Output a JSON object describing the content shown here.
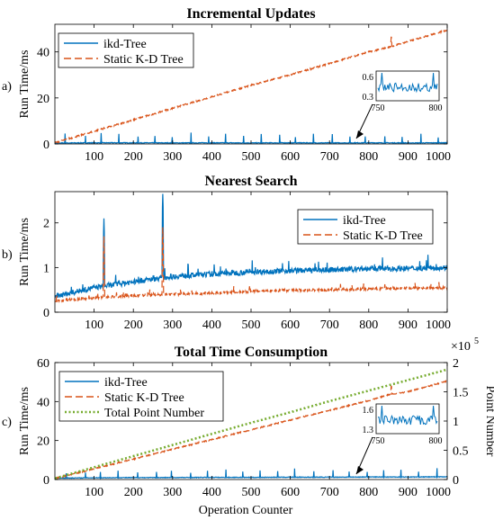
{
  "chart_data": [
    {
      "type": "line",
      "panel_label": "a)",
      "title": "Incremental Updates",
      "xlabel": "",
      "ylabel": "Run Time/ms",
      "xlim": [
        0,
        1000
      ],
      "ylim": [
        0,
        52
      ],
      "xticks": [
        100,
        200,
        300,
        400,
        500,
        600,
        700,
        800,
        900,
        1000
      ],
      "yticks": [
        0,
        20,
        40
      ],
      "grid": false,
      "legend": "top-left",
      "series": [
        {
          "name": "ikd-Tree",
          "color": "#0072BD",
          "style": "solid",
          "x": [
            0,
            100,
            200,
            300,
            400,
            500,
            600,
            700,
            800,
            900,
            1000
          ],
          "y": [
            0.4,
            0.5,
            0.5,
            0.45,
            0.5,
            0.45,
            0.5,
            0.45,
            0.5,
            0.45,
            0.5
          ],
          "spikes_every": 45,
          "spike_height": 4
        },
        {
          "name": "Static K-D Tree",
          "color": "#D95319",
          "style": "dashed",
          "x": [
            0,
            100,
            200,
            300,
            400,
            500,
            600,
            700,
            800,
            850,
            900,
            1000
          ],
          "y": [
            0.5,
            5.5,
            10.5,
            15.5,
            20.5,
            25.5,
            30,
            35,
            40,
            42,
            44.5,
            49.5
          ]
        }
      ],
      "inset": {
        "xlim": [
          750,
          800
        ],
        "yticks": [
          0.3,
          0.6
        ],
        "xticks": [
          750,
          800
        ]
      }
    },
    {
      "type": "line",
      "panel_label": "b)",
      "title": "Nearest Search",
      "xlabel": "",
      "ylabel": "Run Time/ms",
      "xlim": [
        0,
        1000
      ],
      "ylim": [
        0,
        2.7
      ],
      "xticks": [
        100,
        200,
        300,
        400,
        500,
        600,
        700,
        800,
        900,
        1000
      ],
      "yticks": [
        0,
        1,
        2
      ],
      "grid": false,
      "legend": "top-right",
      "series": [
        {
          "name": "ikd-Tree",
          "color": "#0072BD",
          "style": "solid",
          "x": [
            0,
            100,
            200,
            300,
            400,
            500,
            600,
            700,
            800,
            900,
            1000
          ],
          "y": [
            0.35,
            0.55,
            0.68,
            0.8,
            0.85,
            0.9,
            0.93,
            0.95,
            0.97,
            0.98,
            1.0
          ],
          "peaks": [
            {
              "x": 125,
              "y": 2.1
            },
            {
              "x": 275,
              "y": 2.65
            }
          ]
        },
        {
          "name": "Static K-D Tree",
          "color": "#D95319",
          "style": "dashed",
          "x": [
            0,
            100,
            200,
            300,
            400,
            500,
            600,
            700,
            800,
            900,
            1000
          ],
          "y": [
            0.25,
            0.32,
            0.37,
            0.4,
            0.43,
            0.46,
            0.49,
            0.5,
            0.52,
            0.54,
            0.55
          ],
          "peaks": [
            {
              "x": 125,
              "y": 1.7
            },
            {
              "x": 275,
              "y": 1.9
            }
          ]
        }
      ]
    },
    {
      "type": "line",
      "panel_label": "c)",
      "title": "Total Time Consumption",
      "xlabel": "Operation Counter",
      "ylabel": "Run Time/ms",
      "y2label": "Point Number",
      "y2_multiplier": "×10",
      "y2_exponent": "5",
      "xlim": [
        0,
        1000
      ],
      "ylim": [
        0,
        60
      ],
      "y2lim": [
        0,
        2
      ],
      "xticks": [
        100,
        200,
        300,
        400,
        500,
        600,
        700,
        800,
        900,
        1000
      ],
      "yticks": [
        0,
        20,
        40,
        60
      ],
      "y2ticks": [
        0,
        0.5,
        1,
        1.5,
        2
      ],
      "grid": false,
      "legend": "top-left",
      "series": [
        {
          "name": "ikd-Tree",
          "color": "#0072BD",
          "style": "solid",
          "x": [
            0,
            100,
            200,
            300,
            400,
            500,
            600,
            700,
            800,
            900,
            1000
          ],
          "y": [
            0.7,
            0.9,
            1.0,
            1.0,
            1.1,
            1.1,
            1.2,
            1.2,
            1.3,
            1.3,
            1.4
          ],
          "spikes_every": 45,
          "spike_height": 4
        },
        {
          "name": "Static K-D Tree",
          "color": "#D95319",
          "style": "dashed",
          "x": [
            0,
            100,
            200,
            300,
            400,
            500,
            600,
            700,
            800,
            850,
            900,
            1000
          ],
          "y": [
            0.5,
            5.5,
            10.5,
            15.5,
            20.5,
            25.5,
            30.5,
            35.5,
            40.5,
            43.5,
            45,
            50.5
          ]
        },
        {
          "name": "Total Point Number",
          "color": "#77AC30",
          "style": "dotted",
          "axis": "right",
          "x": [
            0,
            100,
            200,
            300,
            400,
            500,
            600,
            700,
            800,
            900,
            1000
          ],
          "y": [
            0.02,
            0.21,
            0.4,
            0.59,
            0.78,
            0.97,
            1.15,
            1.34,
            1.52,
            1.7,
            1.88
          ]
        }
      ],
      "inset": {
        "xlim": [
          750,
          800
        ],
        "yticks": [
          1.3,
          1.6
        ],
        "xticks": [
          750,
          800
        ]
      }
    }
  ]
}
